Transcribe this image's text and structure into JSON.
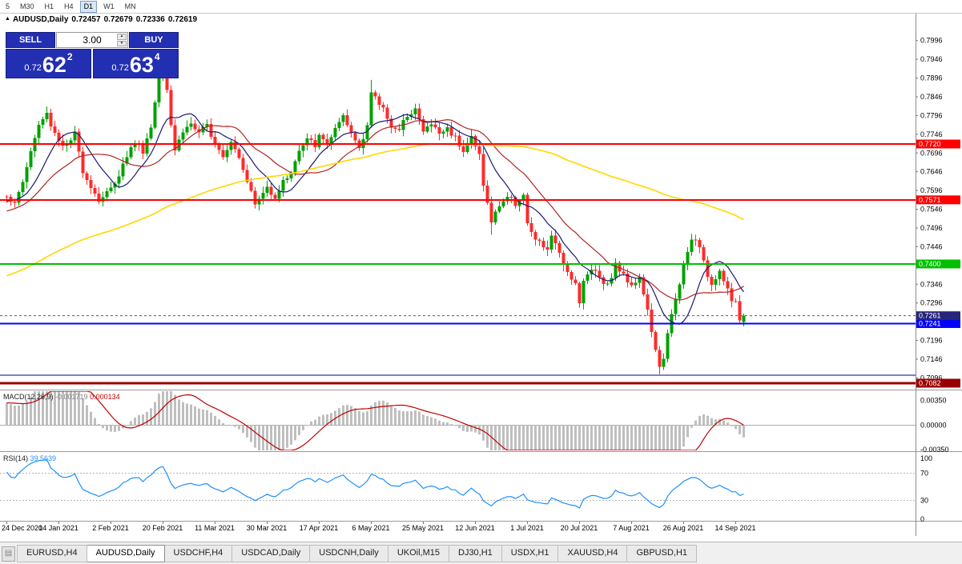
{
  "toolbar": {
    "buttons": [
      {
        "label": "5",
        "active": false
      },
      {
        "label": "M30",
        "active": false
      },
      {
        "label": "H1",
        "active": false
      },
      {
        "label": "H4",
        "active": false
      },
      {
        "label": "D1",
        "active": true
      },
      {
        "label": "W1",
        "active": false
      },
      {
        "label": "MN",
        "active": false
      }
    ]
  },
  "info_line": {
    "symbol": "AUDUSD,Daily",
    "open": "0.72457",
    "high": "0.72679",
    "low": "0.72336",
    "close": "0.72619"
  },
  "one_click": {
    "sell_label": "SELL",
    "buy_label": "BUY",
    "volume": "3.00",
    "sell_price_small": "0.72",
    "sell_price_big": "62",
    "sell_price_sup": "2",
    "buy_price_small": "0.72",
    "buy_price_big": "63",
    "buy_price_sup": "4"
  },
  "price_axis": {
    "ticks": [
      "0.7996",
      "0.7946",
      "0.7896",
      "0.7846",
      "0.7796",
      "0.7746",
      "0.7696",
      "0.7646",
      "0.7596",
      "0.7546",
      "0.7496",
      "0.7446",
      "0.7396",
      "0.7346",
      "0.7296",
      "0.7246",
      "0.7196",
      "0.7146",
      "0.7096"
    ],
    "bid_badge": {
      "text": "0.7261",
      "value": 0.72619,
      "color": "#26267A"
    }
  },
  "levels": [
    {
      "value": 0.772,
      "color": "#FF0000",
      "badge": "0.7720",
      "width": 2
    },
    {
      "value": 0.7571,
      "color": "#FF0000",
      "badge": "0.7571",
      "width": 2
    },
    {
      "value": 0.74,
      "color": "#00C000",
      "badge": "0.7400",
      "width": 2
    },
    {
      "value": 0.7241,
      "color": "#0000FF",
      "badge": "0.7241",
      "width": 2
    },
    {
      "value": 0.7103,
      "color": "#000080",
      "badge": "",
      "width": 1
    },
    {
      "value": 0.7082,
      "color": "#990000",
      "badge": "0.7082",
      "width": 3
    }
  ],
  "chart_data": {
    "type": "candlestick",
    "symbol": "AUDUSD",
    "timeframe": "Daily",
    "title": "AUDUSD,Daily 0.72457 0.72679 0.72336 0.72619",
    "x_labels": [
      "24 Dec 2020",
      "14 Jan 2021",
      "2 Feb 2021",
      "20 Feb 2021",
      "11 Mar 2021",
      "30 Mar 2021",
      "17 Apr 2021",
      "6 May 2021",
      "25 May 2021",
      "12 Jun 2021",
      "1 Jul 2021",
      "20 Jul 2021",
      "7 Aug 2021",
      "26 Aug 2021",
      "14 Sep 2021"
    ],
    "candles_per_label": 13,
    "candle_count": 185,
    "price_range": {
      "min": 0.7067,
      "max": 0.807
    },
    "anchors": [
      [
        0,
        0.7585
      ],
      [
        2,
        0.7558
      ],
      [
        4,
        0.762
      ],
      [
        6,
        0.77
      ],
      [
        8,
        0.777
      ],
      [
        10,
        0.78
      ],
      [
        11,
        0.7772
      ],
      [
        13,
        0.773
      ],
      [
        15,
        0.7712
      ],
      [
        17,
        0.7745
      ],
      [
        19,
        0.765
      ],
      [
        21,
        0.7608
      ],
      [
        23,
        0.757
      ],
      [
        26,
        0.76
      ],
      [
        28,
        0.764
      ],
      [
        30,
        0.769
      ],
      [
        32,
        0.7725
      ],
      [
        34,
        0.7703
      ],
      [
        36,
        0.7765
      ],
      [
        38,
        0.79
      ],
      [
        39,
        0.793
      ],
      [
        40,
        0.787
      ],
      [
        41,
        0.7775
      ],
      [
        42,
        0.7706
      ],
      [
        44,
        0.7755
      ],
      [
        46,
        0.7775
      ],
      [
        48,
        0.7745
      ],
      [
        50,
        0.777
      ],
      [
        52,
        0.7725
      ],
      [
        54,
        0.7692
      ],
      [
        56,
        0.773
      ],
      [
        58,
        0.7688
      ],
      [
        60,
        0.7625
      ],
      [
        62,
        0.7558
      ],
      [
        64,
        0.7588
      ],
      [
        65,
        0.7605
      ],
      [
        67,
        0.758
      ],
      [
        69,
        0.7618
      ],
      [
        71,
        0.7648
      ],
      [
        73,
        0.77
      ],
      [
        75,
        0.773
      ],
      [
        77,
        0.7718
      ],
      [
        78,
        0.7738
      ],
      [
        80,
        0.7722
      ],
      [
        82,
        0.7758
      ],
      [
        84,
        0.7788
      ],
      [
        86,
        0.7748
      ],
      [
        88,
        0.7712
      ],
      [
        90,
        0.7772
      ],
      [
        91,
        0.7855
      ],
      [
        92,
        0.784
      ],
      [
        94,
        0.7815
      ],
      [
        96,
        0.777
      ],
      [
        98,
        0.7752
      ],
      [
        100,
        0.78
      ],
      [
        102,
        0.7815
      ],
      [
        104,
        0.7752
      ],
      [
        106,
        0.7775
      ],
      [
        108,
        0.7748
      ],
      [
        110,
        0.7762
      ],
      [
        112,
        0.7738
      ],
      [
        114,
        0.7705
      ],
      [
        116,
        0.7738
      ],
      [
        117,
        0.7712
      ],
      [
        118,
        0.7692
      ],
      [
        119,
        0.7615
      ],
      [
        120,
        0.756
      ],
      [
        121,
        0.7512
      ],
      [
        123,
        0.7558
      ],
      [
        125,
        0.758
      ],
      [
        127,
        0.7562
      ],
      [
        129,
        0.7585
      ],
      [
        130,
        0.7505
      ],
      [
        131,
        0.7478
      ],
      [
        133,
        0.7455
      ],
      [
        135,
        0.744
      ],
      [
        136,
        0.7468
      ],
      [
        138,
        0.7432
      ],
      [
        140,
        0.7378
      ],
      [
        142,
        0.7352
      ],
      [
        143,
        0.7292
      ],
      [
        144,
        0.7352
      ],
      [
        146,
        0.7392
      ],
      [
        148,
        0.7368
      ],
      [
        150,
        0.7342
      ],
      [
        152,
        0.7398
      ],
      [
        154,
        0.7368
      ],
      [
        156,
        0.7348
      ],
      [
        158,
        0.7362
      ],
      [
        159,
        0.7322
      ],
      [
        160,
        0.7272
      ],
      [
        161,
        0.7222
      ],
      [
        162,
        0.7165
      ],
      [
        163,
        0.712
      ],
      [
        164,
        0.7152
      ],
      [
        165,
        0.7222
      ],
      [
        166,
        0.7262
      ],
      [
        167,
        0.7302
      ],
      [
        168,
        0.7342
      ],
      [
        169,
        0.7398
      ],
      [
        170,
        0.7432
      ],
      [
        171,
        0.7462
      ],
      [
        172,
        0.7472
      ],
      [
        173,
        0.7438
      ],
      [
        174,
        0.7402
      ],
      [
        175,
        0.7372
      ],
      [
        176,
        0.7348
      ],
      [
        177,
        0.7368
      ],
      [
        178,
        0.7382
      ],
      [
        179,
        0.7362
      ],
      [
        180,
        0.7332
      ],
      [
        181,
        0.7302
      ],
      [
        182,
        0.7292
      ],
      [
        183,
        0.7252
      ],
      [
        184,
        0.72619
      ]
    ],
    "specials": [
      {
        "i": 10,
        "high": 0.782
      },
      {
        "i": 39,
        "high": 0.7958
      },
      {
        "i": 91,
        "high": 0.7891
      },
      {
        "i": 121,
        "low": 0.7478
      },
      {
        "i": 143,
        "low": 0.7289
      },
      {
        "i": 163,
        "low": 0.7106
      },
      {
        "i": 172,
        "high": 0.7478
      }
    ],
    "last_candle": {
      "open": 0.72457,
      "high": 0.72679,
      "low": 0.72336,
      "close": 0.72619
    },
    "prehistory": {
      "start": 0.715,
      "end": 0.758,
      "count": 100
    },
    "colors": {
      "up": "#00A000",
      "down": "#FF2A2A",
      "ma_fast": "#191970",
      "ma_mid": "#B22222",
      "ma_slow": "#FFD700",
      "macd_hist": "#BFBFBF",
      "macd_signal": "#C00000",
      "rsi": "#1E90FF"
    },
    "mas": [
      {
        "period": 10,
        "key": "ma_fast"
      },
      {
        "period": 21,
        "key": "ma_mid"
      },
      {
        "period": 100,
        "key": "ma_slow"
      }
    ],
    "macd": {
      "label": "MACD(12,26,9)",
      "value_main": "-0.001719",
      "value_signal": "0.000134",
      "fast": 12,
      "slow": 26,
      "signal": 9,
      "range": {
        "min": -0.0036,
        "max": 0.0048
      },
      "axis_labels": [
        {
          "text": "0.00350",
          "value": 0.0035
        },
        {
          "text": "0.00000",
          "value": 0
        },
        {
          "text": "-0.00350",
          "value": -0.0035
        }
      ]
    },
    "rsi": {
      "label": "RSI(14)",
      "value": "39.5639",
      "period": 14,
      "levels": [
        70,
        30
      ],
      "range": {
        "min": 0,
        "max": 100
      },
      "axis_labels": [
        {
          "text": "100",
          "value": 100
        },
        {
          "text": "70",
          "value": 70
        },
        {
          "text": "30",
          "value": 30
        },
        {
          "text": "0",
          "value": 0
        }
      ]
    }
  },
  "tabs": {
    "items": [
      {
        "label": "EURUSD,H4",
        "active": false
      },
      {
        "label": "AUDUSD,Daily",
        "active": true
      },
      {
        "label": "USDCHF,H4",
        "active": false
      },
      {
        "label": "USDCAD,Daily",
        "active": false
      },
      {
        "label": "USDCNH,Daily",
        "active": false
      },
      {
        "label": "UKOil,M15",
        "active": false
      },
      {
        "label": "DJ30,H1",
        "active": false
      },
      {
        "label": "USDX,H1",
        "active": false
      },
      {
        "label": "XAUUSD,H4",
        "active": false
      },
      {
        "label": "GBPUSD,H1",
        "active": false
      }
    ]
  }
}
